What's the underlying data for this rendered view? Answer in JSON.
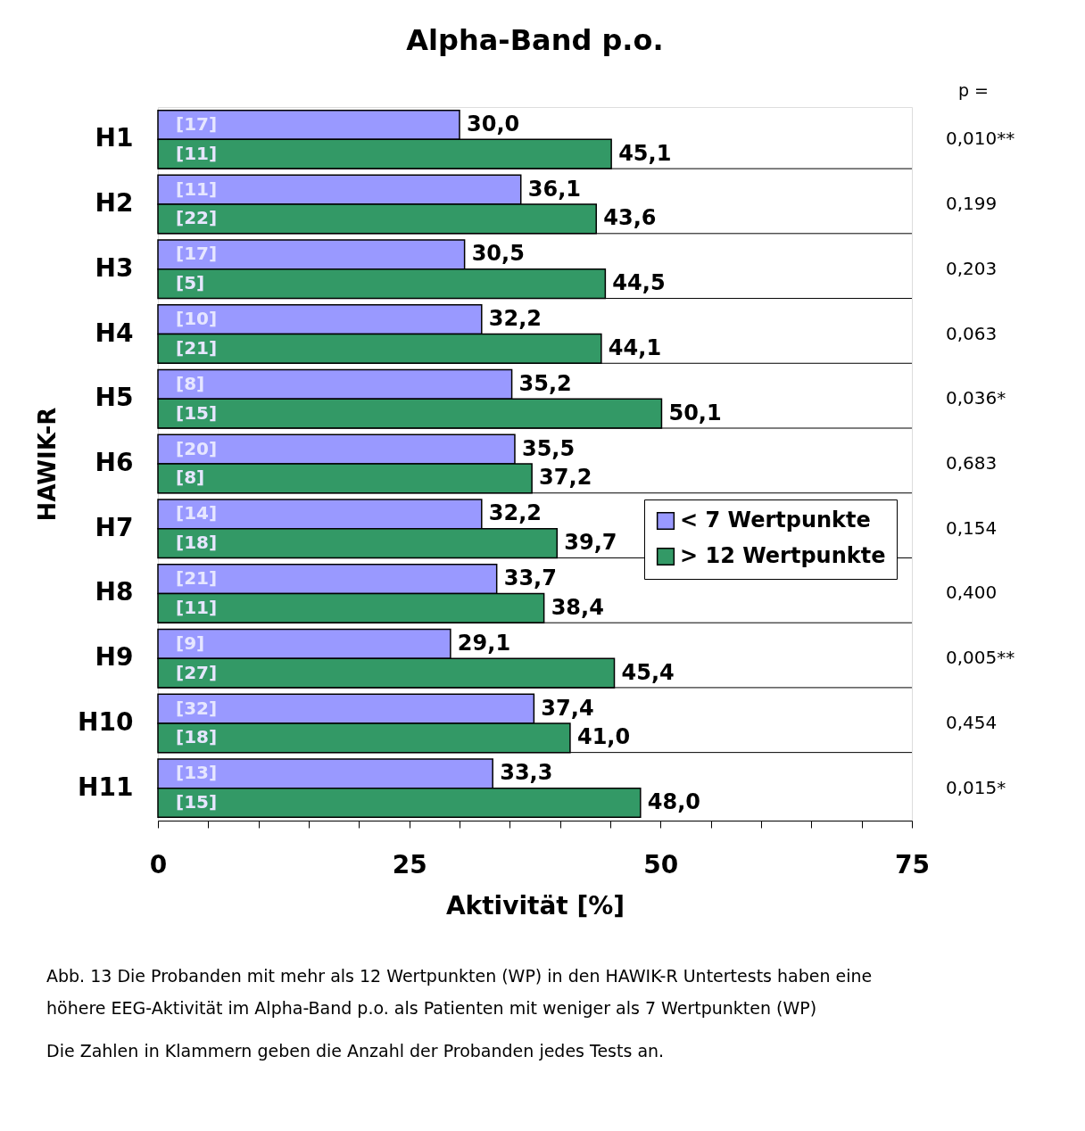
{
  "chart_data": {
    "type": "bar",
    "orientation": "horizontal",
    "title": "Alpha-Band p.o.",
    "xlabel": "Aktivität [%]",
    "ylabel": "HAWIK-R",
    "categories": [
      "H1",
      "H2",
      "H3",
      "H4",
      "H5",
      "H6",
      "H7",
      "H8",
      "H9",
      "H10",
      "H11"
    ],
    "series": [
      {
        "name": "< 7 Wertpunkte",
        "color": "#9999ff",
        "values": [
          30.0,
          36.1,
          30.5,
          32.2,
          35.2,
          35.5,
          32.2,
          33.7,
          29.1,
          37.4,
          33.3
        ],
        "value_labels": [
          "30,0",
          "36,1",
          "30,5",
          "32,2",
          "35,2",
          "35,5",
          "32,2",
          "33,7",
          "29,1",
          "37,4",
          "33,3"
        ]
      },
      {
        "name": "> 12 Wertpunkte",
        "color": "#339966",
        "values": [
          45.1,
          43.6,
          44.5,
          44.1,
          50.1,
          37.2,
          39.7,
          38.4,
          45.4,
          41.0,
          48.0
        ],
        "value_labels": [
          "45,1",
          "43,6",
          "44,5",
          "44,1",
          "50,1",
          "37,2",
          "39,7",
          "38,4",
          "45,4",
          "41,0",
          "48,0"
        ]
      }
    ],
    "xlim": [
      0,
      75
    ],
    "xticks": [
      0,
      {
        "value": 5,
        "label": null
      },
      {
        "value": 10,
        "label": null
      },
      {
        "value": 15,
        "label": null
      },
      {
        "value": 20,
        "label": null
      },
      25,
      {
        "value": 30,
        "label": null
      },
      {
        "value": 35,
        "label": null
      },
      {
        "value": 40,
        "label": null
      },
      {
        "value": 45,
        "label": null
      },
      50,
      {
        "value": 55,
        "label": null
      },
      {
        "value": 60,
        "label": null
      },
      {
        "value": 65,
        "label": null
      },
      {
        "value": 70,
        "label": null
      },
      75
    ],
    "grid": "y",
    "legend": "right",
    "annotations": [
      "p =",
      "0,010**",
      "0,199",
      "0,203",
      "0,063",
      "0,036*",
      "0,683",
      "0,154",
      "0,400",
      "0,005**",
      "0,454",
      "0,015*",
      "[17]",
      "[11]",
      "[11]",
      "[22]",
      "[17]",
      "[5]",
      "[10]",
      "[21]",
      "[8]",
      "[15]",
      "[20]",
      "[8]",
      "[14]",
      "[18]",
      "[21]",
      "[11]",
      "[9]",
      "[27]",
      "[32]",
      "[18]",
      "[13]",
      "[15]",
      "Abb. 13  Die Probanden mit mehr als 12 Wertpunkten (WP) in den HAWIK-R Untertests haben eine höhere EEG-Aktivität im Alpha-Band p.o. als Patienten mit weniger als 7 Wertpunkten (WP)",
      "Die Zahlen in Klammern geben die Anzahl der Probanden jedes Tests an."
    ]
  }
}
